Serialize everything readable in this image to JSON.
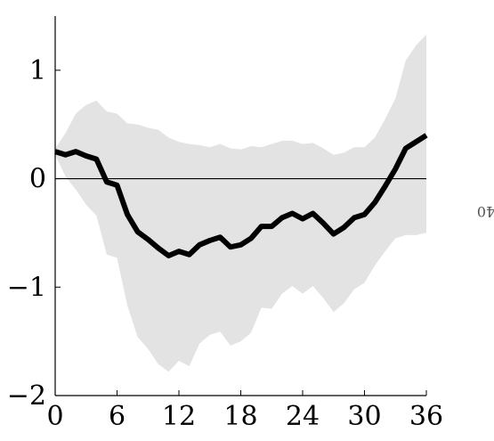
{
  "chart_data": {
    "type": "line",
    "title": "",
    "xlabel": "",
    "ylabel": "",
    "side_label": "40",
    "xlim": [
      0,
      36
    ],
    "ylim": [
      -2,
      1.5
    ],
    "x_ticks": [
      0,
      6,
      12,
      18,
      24,
      30,
      36
    ],
    "x_tick_labels": [
      "0",
      "6",
      "12",
      "18",
      "24",
      "30",
      "36"
    ],
    "y_ticks": [
      1,
      0,
      -1,
      -2
    ],
    "y_tick_labels": [
      "1",
      "0",
      "−1",
      "−2"
    ],
    "zero_line": 0,
    "grid": false,
    "colors": {
      "line": "#000000",
      "band": "#e3e3e3",
      "axis": "#000000"
    },
    "x": [
      0,
      1,
      2,
      3,
      4,
      5,
      6,
      7,
      8,
      9,
      10,
      11,
      12,
      13,
      14,
      15,
      16,
      17,
      18,
      19,
      20,
      21,
      22,
      23,
      24,
      25,
      26,
      27,
      28,
      29,
      30,
      31,
      32,
      33,
      34,
      35,
      36
    ],
    "series": [
      {
        "values": [
          0.25,
          0.22,
          0.25,
          0.21,
          0.18,
          -0.03,
          -0.06,
          -0.33,
          -0.49,
          -0.56,
          -0.64,
          -0.71,
          -0.67,
          -0.7,
          -0.61,
          -0.57,
          -0.54,
          -0.63,
          -0.61,
          -0.55,
          -0.44,
          -0.44,
          -0.36,
          -0.32,
          -0.37,
          -0.32,
          -0.41,
          -0.51,
          -0.45,
          -0.36,
          -0.33,
          -0.22,
          -0.07,
          0.09,
          0.28,
          0.34,
          0.4
        ]
      }
    ],
    "band": {
      "upper": [
        0.28,
        0.42,
        0.6,
        0.68,
        0.72,
        0.62,
        0.6,
        0.51,
        0.5,
        0.47,
        0.45,
        0.38,
        0.34,
        0.32,
        0.31,
        0.29,
        0.32,
        0.28,
        0.27,
        0.3,
        0.29,
        0.32,
        0.35,
        0.35,
        0.32,
        0.33,
        0.28,
        0.22,
        0.24,
        0.29,
        0.29,
        0.38,
        0.55,
        0.74,
        1.09,
        1.23,
        1.33
      ],
      "lower": [
        0.22,
        0.02,
        -0.1,
        -0.24,
        -0.34,
        -0.7,
        -0.73,
        -1.17,
        -1.46,
        -1.57,
        -1.71,
        -1.78,
        -1.68,
        -1.73,
        -1.52,
        -1.44,
        -1.41,
        -1.54,
        -1.5,
        -1.42,
        -1.19,
        -1.2,
        -1.06,
        -0.99,
        -1.06,
        -0.99,
        -1.1,
        -1.23,
        -1.15,
        -1.02,
        -0.96,
        -0.8,
        -0.67,
        -0.55,
        -0.52,
        -0.52,
        -0.5
      ]
    }
  }
}
